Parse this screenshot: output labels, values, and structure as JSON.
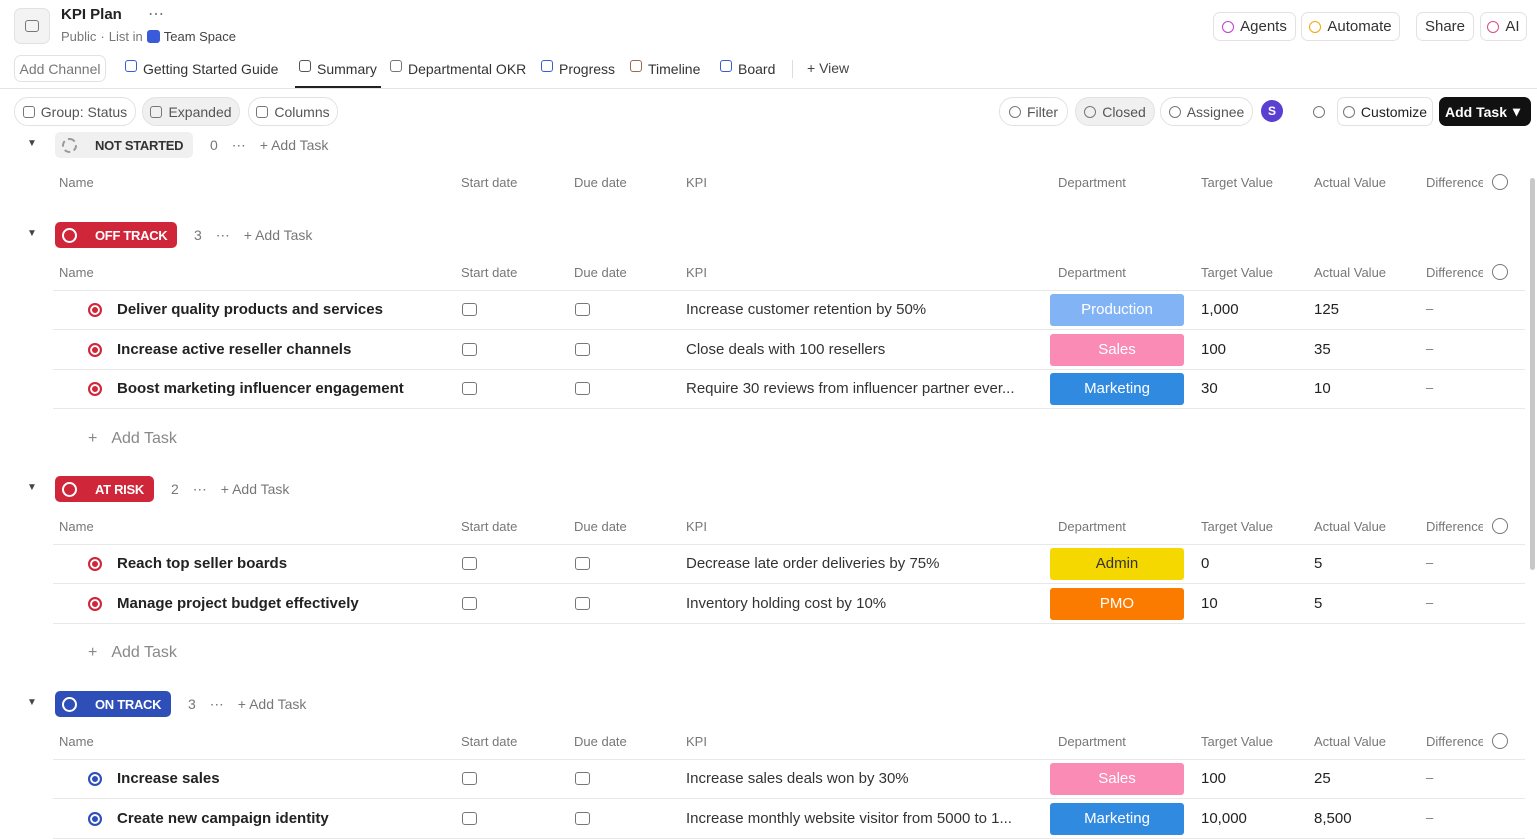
{
  "header": {
    "title": "KPI Plan",
    "visibility": "Public",
    "list_in": "List in",
    "space": "Team Space",
    "buttons": [
      "Agents",
      "Automate",
      "Share",
      "AI"
    ]
  },
  "tabs": {
    "add_channel": "Add Channel",
    "views": [
      "Getting Started Guide",
      "Summary",
      "Departmental OKR",
      "Progress",
      "Timeline",
      "Board"
    ],
    "active": 1,
    "add_view": "View"
  },
  "toolbar": {
    "left": [
      "Group: Status",
      "Expanded",
      "Columns"
    ],
    "right": [
      "Filter",
      "Closed",
      "Assignee"
    ],
    "avatar": "S",
    "customize": "Customize",
    "add_task": "Add Task"
  },
  "columns": [
    "Name",
    "Start date",
    "Due date",
    "KPI",
    "Department",
    "Target Value",
    "Actual Value",
    "Difference"
  ],
  "groups": [
    {
      "status": "NOT STARTED",
      "count": 0,
      "color": "#f0f0f0",
      "text_color": "#333333",
      "add_task": "Add Task",
      "tasks": []
    },
    {
      "status": "OFF TRACK",
      "count": 3,
      "color": "#d0263a",
      "text_color": "#ffffff",
      "add_task": "Add Task",
      "tasks": [
        {
          "name": "Deliver quality products and services",
          "kpi": "Increase customer retention by 50%",
          "department": {
            "label": "Production",
            "color": "#82b4f5",
            "text_color": "#ffffff"
          },
          "target": "1,000",
          "actual": "125",
          "difference": "–"
        },
        {
          "name": "Increase active reseller channels",
          "kpi": "Close deals with 100 resellers",
          "department": {
            "label": "Sales",
            "color": "#f98bb4",
            "text_color": "#ffffff"
          },
          "target": "100",
          "actual": "35",
          "difference": "–"
        },
        {
          "name": "Boost marketing influencer engagement",
          "kpi": "Require 30 reviews from influencer partner ever...",
          "department": {
            "label": "Marketing",
            "color": "#2f8ae0",
            "text_color": "#ffffff"
          },
          "target": "30",
          "actual": "10",
          "difference": "–"
        }
      ]
    },
    {
      "status": "AT RISK",
      "count": 2,
      "color": "#d0263a",
      "text_color": "#ffffff",
      "add_task": "Add Task",
      "tasks": [
        {
          "name": "Reach top seller boards",
          "kpi": "Decrease late order deliveries by 75%",
          "department": {
            "label": "Admin",
            "color": "#f5d800",
            "text_color": "#333333"
          },
          "target": "0",
          "actual": "5",
          "difference": "–"
        },
        {
          "name": "Manage project budget effectively",
          "kpi": "Inventory holding cost by 10%",
          "department": {
            "label": "PMO",
            "color": "#fb7a00",
            "text_color": "#ffffff"
          },
          "target": "10",
          "actual": "5",
          "difference": "–"
        }
      ]
    },
    {
      "status": "ON TRACK",
      "count": 3,
      "color": "#2e4fb8",
      "text_color": "#ffffff",
      "add_task": "Add Task",
      "tasks": [
        {
          "name": "Increase sales",
          "kpi": "Increase sales deals won by 30%",
          "department": {
            "label": "Sales",
            "color": "#f98bb4",
            "text_color": "#ffffff"
          },
          "target": "100",
          "actual": "25",
          "difference": "–"
        },
        {
          "name": "Create new campaign identity",
          "kpi": "Increase monthly website visitor from 5000 to 1...",
          "department": {
            "label": "Marketing",
            "color": "#2f8ae0",
            "text_color": "#ffffff"
          },
          "target": "10,000",
          "actual": "8,500",
          "difference": "–"
        }
      ]
    }
  ]
}
